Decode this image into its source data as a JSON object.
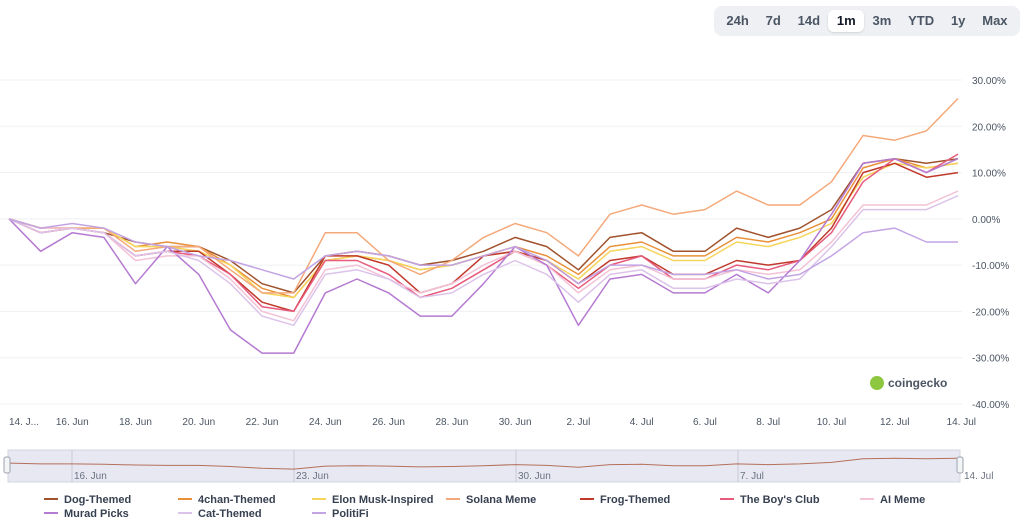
{
  "range_selector": {
    "options": [
      "24h",
      "7d",
      "14d",
      "1m",
      "3m",
      "YTD",
      "1y",
      "Max"
    ],
    "active": "1m"
  },
  "watermark": "coingecko",
  "navigator": {
    "labels": [
      "16. Jun",
      "23. Jun",
      "30. Jun",
      "7. Jul"
    ],
    "end_label": "14. Jul"
  },
  "chart_data": {
    "type": "line",
    "title": "",
    "xlabel": "",
    "ylabel": "",
    "ylim": [
      -40,
      30
    ],
    "y_ticks": [
      "30.00%",
      "20.00%",
      "10.00%",
      "0.00%",
      "-10.00%",
      "-20.00%",
      "-30.00%",
      "-40.00%"
    ],
    "x_ticks": [
      "14. J...",
      "16. Jun",
      "18. Jun",
      "20. Jun",
      "22. Jun",
      "24. Jun",
      "26. Jun",
      "28. Jun",
      "30. Jun",
      "2. Jul",
      "4. Jul",
      "6. Jul",
      "8. Jul",
      "10. Jul",
      "12. Jul",
      "14. Jul"
    ],
    "x_start": "14 Jun",
    "x_end": "14 Jul",
    "series": [
      {
        "name": "Dog-Themed",
        "color": "#a0522d",
        "values": [
          0,
          -2,
          -2,
          -3,
          -5,
          -6,
          -6,
          -9,
          -14,
          -16,
          -8,
          -7,
          -8,
          -10,
          -9,
          -7,
          -4,
          -6,
          -11,
          -4,
          -3,
          -7,
          -7,
          -2,
          -4,
          -2,
          2,
          12,
          13,
          12,
          13
        ]
      },
      {
        "name": "4chan-Themed",
        "color": "#e8913a",
        "values": [
          0,
          -2,
          -2,
          -2,
          -6,
          -5,
          -6,
          -10,
          -15,
          -17,
          -9,
          -8,
          -9,
          -11,
          -10,
          -8,
          -6,
          -8,
          -12,
          -6,
          -5,
          -8,
          -8,
          -4,
          -5,
          -3,
          0,
          11,
          13,
          11,
          12
        ]
      },
      {
        "name": "Elon Musk-Inspired",
        "color": "#f6d55c",
        "values": [
          0,
          -2,
          -2,
          -2,
          -6,
          -6,
          -7,
          -10,
          -16,
          -17,
          -9,
          -8,
          -9,
          -11,
          -10,
          -8,
          -7,
          -9,
          -13,
          -7,
          -6,
          -9,
          -9,
          -5,
          -6,
          -4,
          -1,
          9,
          12,
          11,
          12
        ]
      },
      {
        "name": "Solana Meme",
        "color": "#f4a97a",
        "values": [
          0,
          -2,
          -2,
          -2,
          -7,
          -6,
          -6,
          -11,
          -16,
          -16,
          -3,
          -3,
          -9,
          -12,
          -9,
          -4,
          -1,
          -3,
          -8,
          1,
          3,
          1,
          2,
          6,
          3,
          3,
          8,
          18,
          17,
          19,
          26
        ]
      },
      {
        "name": "Frog-Themed",
        "color": "#c0392b",
        "values": [
          0,
          -3,
          -2,
          -3,
          -8,
          -7,
          -7,
          -12,
          -18,
          -20,
          -8,
          -8,
          -10,
          -16,
          -14,
          -8,
          -7,
          -9,
          -14,
          -9,
          -8,
          -12,
          -12,
          -9,
          -10,
          -9,
          -2,
          10,
          12,
          9,
          10
        ]
      },
      {
        "name": "The Boy's Club",
        "color": "#e75a7c",
        "values": [
          0,
          -3,
          -2,
          -3,
          -8,
          -7,
          -8,
          -12,
          -19,
          -20,
          -9,
          -9,
          -12,
          -17,
          -15,
          -11,
          -7,
          -10,
          -15,
          -10,
          -8,
          -13,
          -13,
          -10,
          -11,
          -9,
          -3,
          8,
          13,
          10,
          14
        ]
      },
      {
        "name": "AI Meme",
        "color": "#f3c2d6",
        "values": [
          0,
          -2,
          -2,
          -3,
          -9,
          -8,
          -8,
          -13,
          -20,
          -22,
          -11,
          -10,
          -13,
          -16,
          -14,
          -10,
          -7,
          -10,
          -16,
          -11,
          -10,
          -13,
          -13,
          -11,
          -12,
          -11,
          -5,
          3,
          3,
          3,
          6
        ]
      },
      {
        "name": "Murad Picks",
        "color": "#b57ad1",
        "values": [
          0,
          -7,
          -3,
          -4,
          -14,
          -6,
          -12,
          -24,
          -29,
          -29,
          -16,
          -13,
          -16,
          -21,
          -21,
          -14,
          -6,
          -10,
          -23,
          -13,
          -12,
          -16,
          -16,
          -12,
          -16,
          -9,
          1,
          12,
          13,
          10,
          13
        ]
      },
      {
        "name": "Cat-Themed",
        "color": "#dcc3ea",
        "values": [
          0,
          -3,
          -2,
          -3,
          -8,
          -7,
          -9,
          -14,
          -21,
          -23,
          -12,
          -11,
          -13,
          -17,
          -16,
          -12,
          -9,
          -12,
          -18,
          -12,
          -11,
          -15,
          -15,
          -13,
          -14,
          -13,
          -6,
          2,
          2,
          2,
          5
        ]
      },
      {
        "name": "PolitiFi",
        "color": "#c3a4e3",
        "values": [
          0,
          -2,
          -1,
          -2,
          -5,
          -6,
          -8,
          -9,
          -11,
          -13,
          -8,
          -7,
          -8,
          -10,
          -10,
          -8,
          -6,
          -9,
          -14,
          -10,
          -10,
          -12,
          -12,
          -11,
          -13,
          -12,
          -8,
          -3,
          -2,
          -5,
          -5
        ]
      }
    ]
  }
}
